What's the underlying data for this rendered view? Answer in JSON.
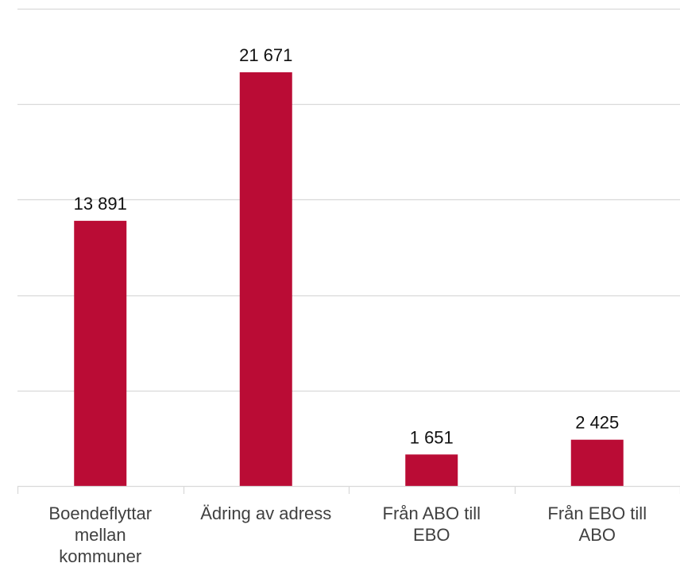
{
  "chart_data": {
    "type": "bar",
    "title": "",
    "xlabel": "",
    "ylabel": "",
    "categories": [
      [
        "Boendeflyttar",
        "mellan",
        "kommuner"
      ],
      [
        "Ädring av adress"
      ],
      [
        "Från ABO till",
        "EBO"
      ],
      [
        "Från EBO till",
        "ABO"
      ]
    ],
    "values": [
      13891,
      21671,
      1651,
      2425
    ],
    "data_labels": [
      "13 891",
      "21 671",
      "1 651",
      "2 425"
    ],
    "ylim": [
      0,
      25000
    ],
    "ytick_step": 5000,
    "grid": true,
    "bar_color": "#BA0C35",
    "grid_color": "#D9D9D9"
  }
}
